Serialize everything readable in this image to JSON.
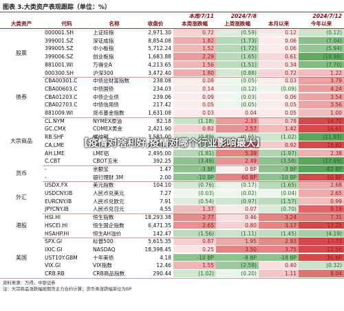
{
  "title": "图表 3.大类资产表现跟踪（单位：%）",
  "table": {
    "header_top": [
      "本周/7/11",
      "2024/7/8",
      "2024/7/12"
    ],
    "headers": [
      "大类资产",
      "代码",
      "名称",
      "收盘价",
      "本周涨跌幅",
      "上周涨跌幅",
      "本月以来",
      "今年以来"
    ],
    "groups": [
      {
        "name": "股票",
        "rows": [
          [
            "000001.SH",
            "上证综指",
            "2,971.30",
            "0.72",
            "(0.59)",
            "0.12",
            "(0.12)"
          ],
          [
            "399001.SZ",
            "深证成指",
            "8,854.08",
            "1.82",
            "(1.73)",
            "0.06",
            "(7.04)"
          ],
          [
            "399005.SZ",
            "中小板指",
            "5,712.24",
            "1.52",
            "(1.72)",
            "0.06",
            "(5.94)"
          ],
          [
            "399006.SZ",
            "创业板指",
            "1,683.88",
            "2.29",
            "(1.65)",
            "0.61",
            "(10.98)"
          ],
          [
            "881001.WI",
            "万得全A",
            "4,213.65",
            "1.56",
            "(1.51)",
            "0.34",
            "(7.70)"
          ],
          [
            "000300.SH",
            "沪深300",
            "3,472.40",
            "1.80",
            "(0.88)",
            "0.72",
            "1.22"
          ]
        ]
      },
      {
        "name": "债券",
        "rows": [
          [
            "CBA00301.C",
            "中债总财富指数",
            "238.08",
            "0.08",
            "(0.05)",
            "0.03",
            "3.79"
          ],
          [
            "CBA00603.C",
            "中债国债",
            "234.03",
            "0.14",
            "(0.12)",
            "(0.09)",
            "4.24"
          ],
          [
            "CBA01203.C",
            "中债企业债",
            "239.06",
            "0.09",
            "(0.03)",
            "0.06",
            "3.54"
          ],
          [
            "CBA02703.C",
            "中债信用债",
            "217.42",
            "0.05",
            "(0.05)",
            "0.05",
            "3.56"
          ],
          [
            "881009.WI",
            "货币基金指数",
            "1,631.08",
            "0.03",
            "0.04",
            "0.05",
            "1.00"
          ]
        ]
      },
      {
        "name": "大宗商品",
        "rows": [
          [
            "CL.NYM",
            "NYMEX原油",
            "82.18",
            "(1.18)",
            "2.33",
            "0.78",
            "14.70"
          ],
          [
            "GC.CMX",
            "COMEX黄金",
            "2,421.90",
            "0.82",
            "2.57",
            "1.42",
            "16.61"
          ],
          [
            "RB.SHF",
            "螺纹钢",
            "3,581.00",
            "(0.89)",
            "(0.65)",
            "(1.02)",
            "(11.93)"
          ],
          [
            "CA.LME",
            "LME铜",
            "9,880.00",
            "(0.67)",
            "3.10",
            "0.92",
            "15.62"
          ],
          [
            "AH.LME",
            "LME铝",
            "2,495.00",
            "(1.81)",
            "5.39",
            "(1.97)",
            "2.38"
          ],
          [
            "C.CBT",
            "CBOT玉米",
            "392.25",
            "(3.49)",
            "2.49",
            "(3.58)",
            "(17.99)"
          ]
        ]
      },
      {
        "name": "货币",
        "rows": [
          [
            "-",
            "余额宝",
            "1.47",
            "-3 BP",
            "0 BP",
            "-3 BP",
            "-82 BP"
          ],
          [
            "-",
            "银行理财 3M",
            "2.00",
            "-10 BP",
            "60 BP",
            "-10 BP",
            "50 BP"
          ]
        ]
      },
      {
        "name": "外汇",
        "rows": [
          [
            "USDX.FX",
            "美元指数",
            "104.10",
            "(0.76)",
            "(0.17)",
            "(1.65)",
            "2.68"
          ],
          [
            "USDCNY.IB",
            "人民币兑美元",
            "7.27",
            "(0.03)",
            "(0.02)",
            "(0.04)",
            "2.65"
          ],
          [
            "EURCNY.IB",
            "人民币兑欧元",
            "7.91",
            "(0.54)",
            "(0.97)",
            "(1.57)",
            "0.99"
          ],
          [
            "JPYCNY.IB",
            "人民币兑日元",
            "4.55",
            "1.37",
            "0.07",
            "(0.70)",
            "9.19"
          ]
        ]
      },
      {
        "name": "港股",
        "rows": [
          [
            "HSI.HI",
            "恒生指数",
            "18,293.38",
            "2.77",
            "0.46",
            "3.24",
            "7.31"
          ],
          [
            "HSCEI.HI",
            "恒生国企指数",
            "6,471.35",
            "2.65",
            "0.80",
            "3.17",
            "13.25"
          ],
          [
            "HSAHP.HI",
            "恒生AH溢价",
            "142.47",
            "(1.56)",
            "(1.11)",
            "(1.45)",
            "(4.19)"
          ]
        ]
      },
      {
        "name": "美国",
        "rows": [
          [
            "SPX.GI",
            "标普500",
            "5,615.35",
            "0.87",
            "1.95",
            "2.83",
            "17.73"
          ],
          [
            "IXIC.GI",
            "NASDAQ",
            "18,398.45",
            "0.25",
            "3.50",
            "3.75",
            "22.56"
          ],
          [
            "UST10Y.GBM",
            "十年美债",
            "4.18",
            "-10 BP",
            "-8 BP",
            "-18 BP",
            "30 BP"
          ],
          [
            "VIX.GI",
            "VIX指数",
            "12.46",
            "1.55",
            "(2.58)",
            "0.40",
            "(0.32)"
          ],
          [
            "CRB.RB",
            "CRB商品指数",
            "290.44",
            "(1.02)",
            "(0.20)",
            "1.11",
            "8.04"
          ]
        ]
      }
    ]
  },
  "watermark": "【疫情对啥利好,疫情对哪个行业影响最大】",
  "source": "资料来源：万得，中银证券",
  "note": "注：大宗商品涨跌幅按期货主力合约计算；货币类涨跌幅单位为BP"
}
